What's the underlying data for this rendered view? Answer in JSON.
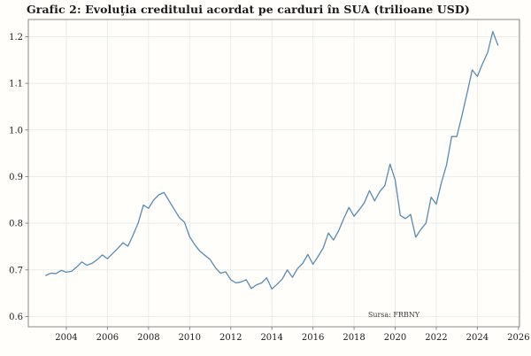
{
  "title": "Grafic 2: Evoluţia creditului acordat pe carduri în SUA (trilioane USD)",
  "source_note": "Sursa: FRBNY",
  "colors": {
    "line": "#5b8ab0",
    "grid": "#ecebe8",
    "spine": "#8a8a8a",
    "tick_mark": "#8a8a8a",
    "tick_label": "#1b1b1b",
    "background": "#fffefb",
    "source_text": "#3c3c3c"
  },
  "chart_data": {
    "type": "line",
    "title": "Grafic 2: Evoluţia creditului acordat pe carduri în SUA (trilioane USD)",
    "xlabel": "",
    "ylabel": "",
    "grid": true,
    "legend": false,
    "annotation": "Sursa: FRBNY",
    "xlim": [
      2002.15,
      2026.05
    ],
    "ylim": [
      0.578,
      1.237
    ],
    "x_tick_values": [
      2004,
      2006,
      2008,
      2010,
      2012,
      2014,
      2016,
      2018,
      2020,
      2022,
      2024,
      2026
    ],
    "x_tick_labels": [
      "2004",
      "2006",
      "2008",
      "2010",
      "2012",
      "2014",
      "2016",
      "2018",
      "2020",
      "2022",
      "2024",
      "2026"
    ],
    "y_tick_values": [
      0.6,
      0.7,
      0.8,
      0.9,
      1.0,
      1.1,
      1.2
    ],
    "y_tick_labels": [
      "0.6",
      "0.7",
      "0.8",
      "0.9",
      "1.0",
      "1.1",
      "1.2"
    ],
    "x": [
      2003.0,
      2003.25,
      2003.5,
      2003.75,
      2004.0,
      2004.25,
      2004.5,
      2004.75,
      2005.0,
      2005.25,
      2005.5,
      2005.75,
      2006.0,
      2006.25,
      2006.5,
      2006.75,
      2007.0,
      2007.25,
      2007.5,
      2007.75,
      2008.0,
      2008.25,
      2008.5,
      2008.75,
      2009.0,
      2009.25,
      2009.5,
      2009.75,
      2010.0,
      2010.25,
      2010.5,
      2010.75,
      2011.0,
      2011.25,
      2011.5,
      2011.75,
      2012.0,
      2012.25,
      2012.5,
      2012.75,
      2013.0,
      2013.25,
      2013.5,
      2013.75,
      2014.0,
      2014.25,
      2014.5,
      2014.75,
      2015.0,
      2015.25,
      2015.5,
      2015.75,
      2016.0,
      2016.25,
      2016.5,
      2016.75,
      2017.0,
      2017.25,
      2017.5,
      2017.75,
      2018.0,
      2018.25,
      2018.5,
      2018.75,
      2019.0,
      2019.25,
      2019.5,
      2019.75,
      2020.0,
      2020.25,
      2020.5,
      2020.75,
      2021.0,
      2021.25,
      2021.5,
      2021.75,
      2022.0,
      2022.25,
      2022.5,
      2022.75,
      2023.0,
      2023.25,
      2023.5,
      2023.75,
      2024.0,
      2024.25,
      2024.5,
      2024.75,
      2025.0
    ],
    "y": [
      0.688,
      0.693,
      0.692,
      0.699,
      0.695,
      0.697,
      0.706,
      0.717,
      0.71,
      0.714,
      0.722,
      0.732,
      0.724,
      0.735,
      0.746,
      0.758,
      0.751,
      0.775,
      0.801,
      0.839,
      0.832,
      0.85,
      0.861,
      0.866,
      0.848,
      0.83,
      0.812,
      0.802,
      0.771,
      0.754,
      0.74,
      0.731,
      0.722,
      0.705,
      0.693,
      0.696,
      0.679,
      0.672,
      0.674,
      0.679,
      0.66,
      0.668,
      0.672,
      0.683,
      0.659,
      0.669,
      0.68,
      0.7,
      0.684,
      0.703,
      0.714,
      0.733,
      0.712,
      0.729,
      0.747,
      0.779,
      0.764,
      0.784,
      0.81,
      0.834,
      0.815,
      0.829,
      0.844,
      0.87,
      0.848,
      0.868,
      0.881,
      0.927,
      0.893,
      0.817,
      0.81,
      0.819,
      0.77,
      0.787,
      0.8,
      0.856,
      0.841,
      0.887,
      0.925,
      0.986,
      0.986,
      1.031,
      1.079,
      1.129,
      1.115,
      1.142,
      1.166,
      1.211,
      1.182
    ]
  }
}
